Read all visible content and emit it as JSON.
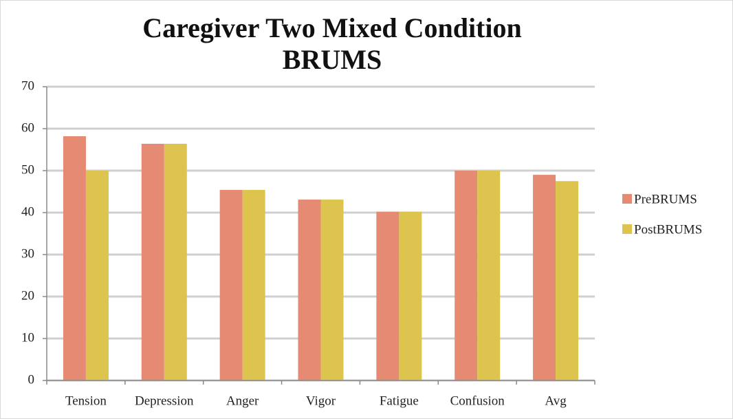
{
  "chart_data": {
    "type": "bar",
    "title": "Caregiver Two Mixed Condition BRUMS",
    "categories": [
      "Tension",
      "Depression",
      "Anger",
      "Vigor",
      "Fatigue",
      "Confusion",
      "Avg"
    ],
    "series": [
      {
        "name": "PreBRUMS",
        "color": "#e58a73",
        "values": [
          58.2,
          56.4,
          45.4,
          43.1,
          40.2,
          50,
          49
        ]
      },
      {
        "name": "PostBRUMS",
        "color": "#dcc44e",
        "values": [
          50,
          56.4,
          45.4,
          43.1,
          40.2,
          50,
          47.5
        ]
      }
    ],
    "ylim": [
      0,
      70
    ],
    "yticks": [
      0,
      10,
      20,
      30,
      40,
      50,
      60,
      70
    ],
    "grid": true,
    "legend": "right"
  }
}
